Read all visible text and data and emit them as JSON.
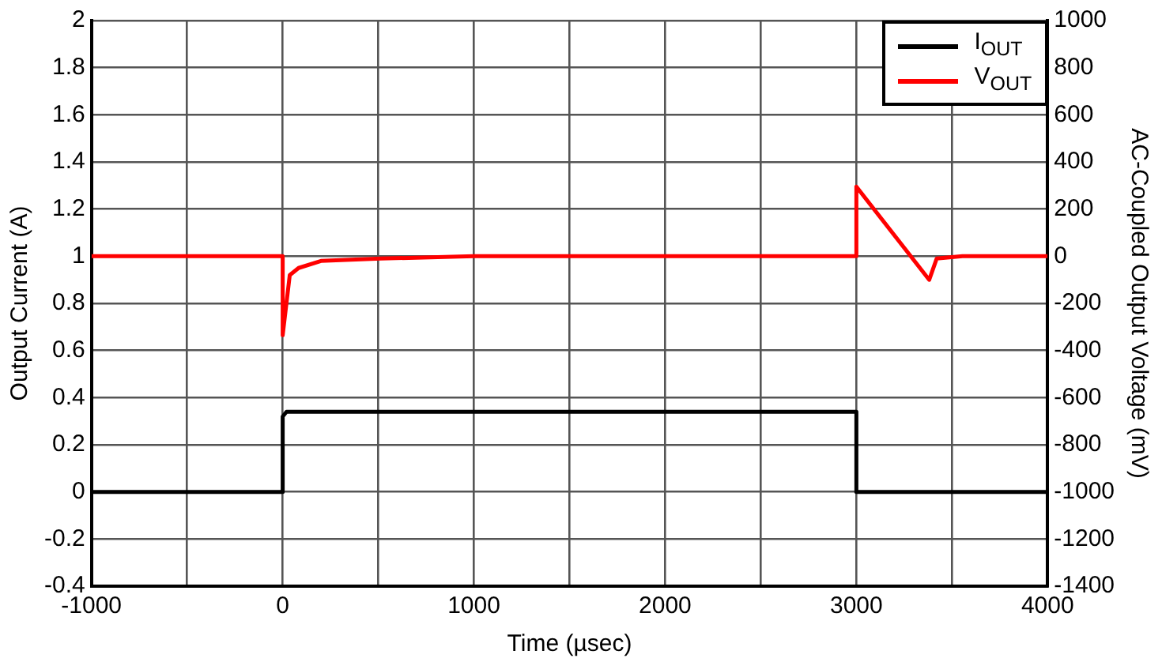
{
  "chart_data": {
    "type": "line",
    "xlabel": "Time (µsec)",
    "ylabel": "Output Current (A)",
    "y2label": "AC-Coupled Output Voltage (mV)",
    "xlim": [
      -1000,
      4000
    ],
    "xticks": [
      -1000,
      {
        "value": -500,
        "label": null
      },
      0,
      {
        "value": 500,
        "label": null
      },
      1000,
      {
        "value": 1500,
        "label": null
      },
      2000,
      {
        "value": 2500,
        "label": null
      },
      3000,
      {
        "value": 3500,
        "label": null
      },
      4000
    ],
    "ylim": [
      -0.4,
      2
    ],
    "yticks": [
      -0.4,
      -0.2,
      0,
      0.2,
      0.4,
      0.6,
      0.8,
      1,
      1.2,
      1.4,
      1.6,
      1.8,
      2
    ],
    "y2lim": [
      -1400,
      1000
    ],
    "y2ticks": [
      -1400,
      -1200,
      -1000,
      -800,
      -600,
      -400,
      -200,
      0,
      200,
      400,
      600,
      800,
      1000
    ],
    "grid": true,
    "legend": "top right",
    "marker": "none",
    "line_style": "solid",
    "series": [
      {
        "name": "I$_{OUT}$",
        "color": "#000000",
        "x": [
          -1000,
          0,
          0,
          20,
          3000,
          3000,
          4000
        ],
        "values": [
          0,
          0,
          0.32,
          0.34,
          0.34,
          0,
          0
        ]
      },
      {
        "name": "V$_{OUT}$",
        "color": "#ff0000",
        "axis": "y2",
        "x": [
          -1000,
          0,
          0,
          37,
          83,
          200,
          514,
          1000,
          3000,
          3000,
          3381,
          3420,
          3555,
          4000
        ],
        "values": [
          0,
          0,
          -335,
          -80,
          -50,
          -20,
          -10,
          0,
          0,
          295,
          -100,
          -10,
          0,
          0
        ]
      }
    ]
  }
}
